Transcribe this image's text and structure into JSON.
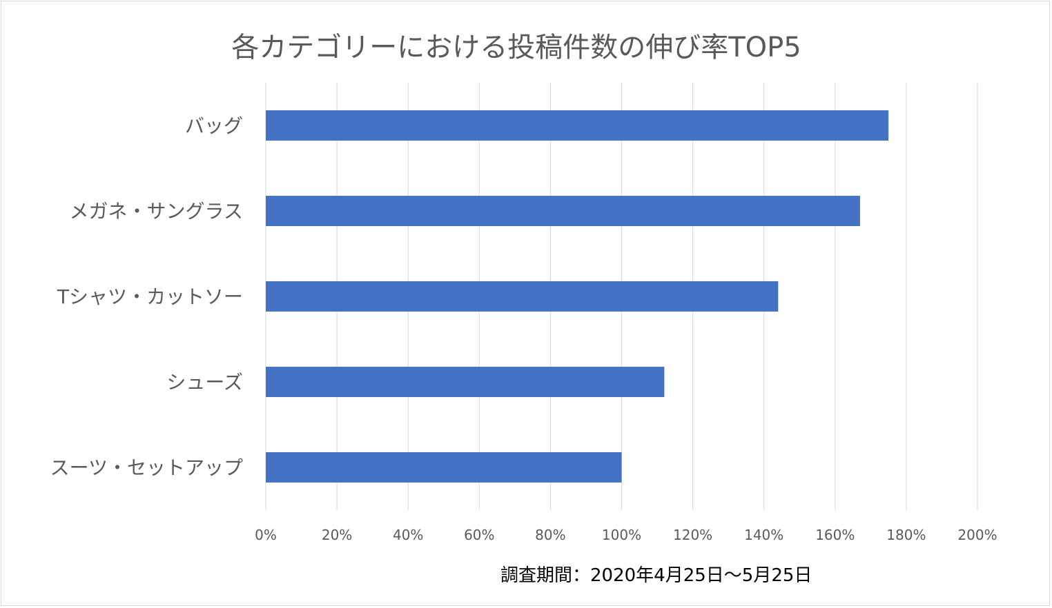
{
  "chart_data": {
    "type": "bar",
    "orientation": "horizontal",
    "title": "各カテゴリーにおける投稿件数の伸び率TOP5",
    "categories": [
      "バッグ",
      "メガネ・サングラス",
      "Tシャツ・カットソー",
      "シューズ",
      "スーツ・セットアップ"
    ],
    "values": [
      175,
      167,
      144,
      112,
      100
    ],
    "unit": "%",
    "xlim": [
      0,
      200
    ],
    "xticks": [
      0,
      20,
      40,
      60,
      80,
      100,
      120,
      140,
      160,
      180,
      200
    ],
    "xtick_labels": [
      "0%",
      "20%",
      "40%",
      "60%",
      "80%",
      "100%",
      "120%",
      "140%",
      "160%",
      "180%",
      "200%"
    ],
    "grid": true,
    "bar_color": "#4472c4",
    "annotation": "調査期間：2020年4月25日〜5月25日"
  }
}
